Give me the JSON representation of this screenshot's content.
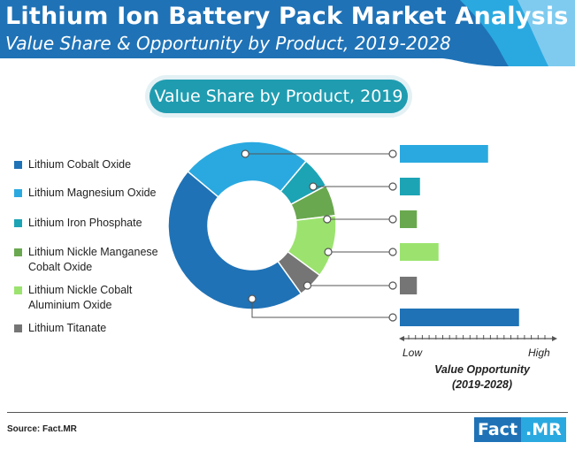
{
  "header": {
    "title": "Lithium Ion Battery Pack Market Analysis",
    "subtitle": "Value Share & Opportunity by Product, 2019-2028",
    "colors": {
      "dark": "#1f72b6",
      "mid": "#2aa9e0",
      "light": "#7fcbef"
    }
  },
  "pill": {
    "label": "Value Share by Product, 2019",
    "color": "#1f9cb0"
  },
  "chart_data": {
    "type": "pie",
    "variant": "donut",
    "title": "Value Share by Product, 2019",
    "categories": [
      "Lithium Cobalt Oxide",
      "Lithium Magnesium Oxide",
      "Lithium Iron Phosphate",
      "Lithium Nickle Manganese Cobalt Oxide",
      "Lithium Nickle Cobalt Aluminium Oxide",
      "Lithium Titanate"
    ],
    "legend_labels": [
      [
        "Lithium Cobalt Oxide"
      ],
      [
        "Lithium Magnesium Oxide"
      ],
      [
        "Lithium Iron Phosphate"
      ],
      [
        "Lithium Nickle Manganese",
        "Cobalt Oxide"
      ],
      [
        "Lithium Nickle Cobalt",
        "Aluminium Oxide"
      ],
      [
        "Lithium Titanate"
      ]
    ],
    "colors": [
      "#1f72b6",
      "#2aa9e0",
      "#1ca4b5",
      "#6aa84f",
      "#9be36e",
      "#757575"
    ],
    "share_percent": [
      46,
      25,
      6,
      6,
      12,
      5
    ],
    "opportunity": {
      "xlabel": "Value Opportunity (2019-2028)",
      "xlabel_lines": [
        "Value Opportunity",
        "(2019-2028)"
      ],
      "low_label": "Low",
      "high_label": "High",
      "scale": [
        0,
        100
      ],
      "bar_order": [
        "Lithium Magnesium Oxide",
        "Lithium Iron Phosphate",
        "Lithium Nickle Manganese Cobalt Oxide",
        "Lithium Nickle Cobalt Aluminium Oxide",
        "Lithium Titanate",
        "Lithium Cobalt Oxide"
      ],
      "bar_colors": [
        "#2aa9e0",
        "#1ca4b5",
        "#6aa84f",
        "#9be36e",
        "#757575",
        "#1f72b6"
      ],
      "values": [
        57,
        13,
        11,
        25,
        11,
        77
      ]
    }
  },
  "footer": {
    "source": "Source: Fact.MR",
    "logo_part1": "Fact",
    "logo_part2": ".MR"
  }
}
